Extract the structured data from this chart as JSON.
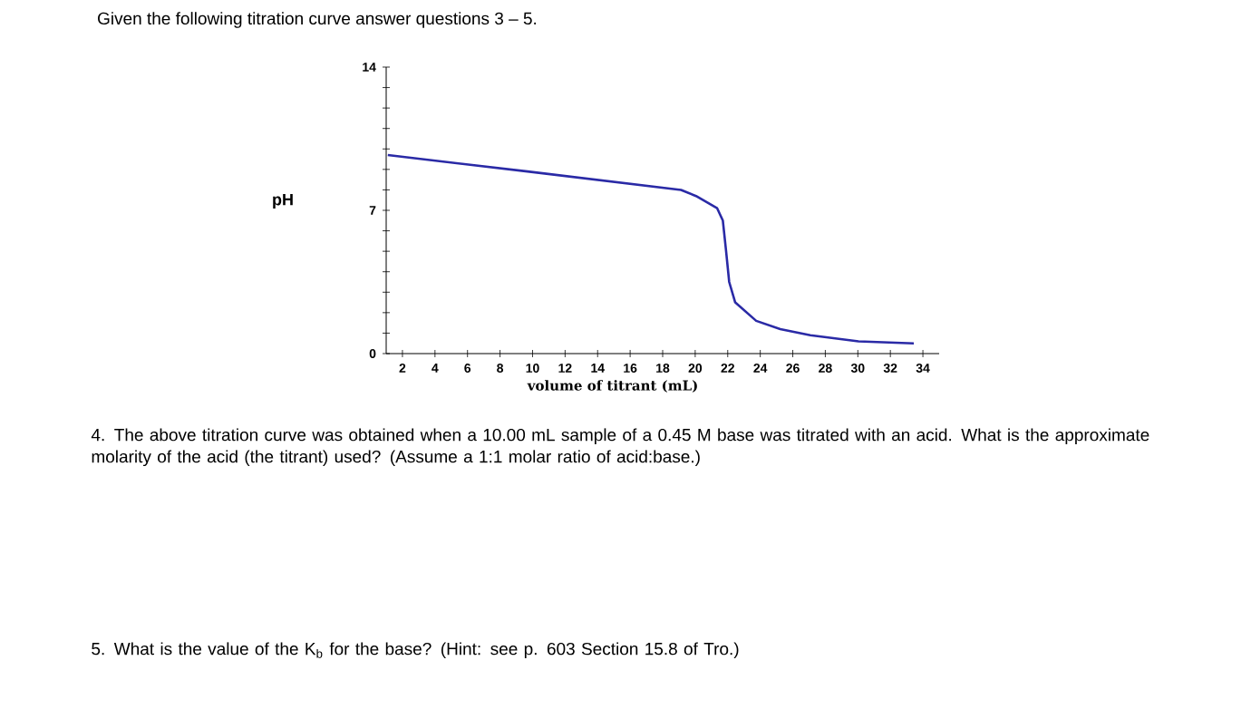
{
  "chart_data": {
    "type": "line",
    "title": "Given the following titration curve answer questions 3 – 5.",
    "xlabel": "volume of titrant (mL)",
    "ylabel": "pH",
    "x": [
      1.1,
      9.69,
      19.13,
      20.05,
      21.35,
      21.7,
      21.9,
      22.09,
      22.46,
      23.75,
      25.23,
      27.08,
      30.04,
      33.44
    ],
    "series": [
      {
        "color": "#2a2aa6",
        "values": [
          9.7,
          8.9,
          8.0,
          7.7,
          7.1,
          6.5,
          5.0,
          3.5,
          2.5,
          1.6,
          1.2,
          0.9,
          0.6,
          0.5
        ]
      }
    ],
    "xlim": [
      1,
      35
    ],
    "ylim": [
      0,
      14
    ],
    "xticks": [
      2,
      4,
      6,
      8,
      10,
      12,
      14,
      16,
      18,
      20,
      22,
      24,
      26,
      28,
      30,
      32,
      34
    ],
    "yticks": [
      0,
      {
        "value": 1,
        "label": null
      },
      {
        "value": 2,
        "label": null
      },
      {
        "value": 3,
        "label": null
      },
      {
        "value": 4,
        "label": null
      },
      {
        "value": 5,
        "label": null
      },
      {
        "value": 6,
        "label": null
      },
      7,
      {
        "value": 8,
        "label": null
      },
      {
        "value": 9,
        "label": null
      },
      {
        "value": 10,
        "label": null
      },
      {
        "value": 11,
        "label": null
      },
      {
        "value": 12,
        "label": null
      },
      {
        "value": 13,
        "label": null
      },
      14
    ],
    "marker": "none",
    "line_style": "solid",
    "annotations": [
      "4.  The above titration curve was obtained when a 10.00 mL sample of a 0.45 M base was titrated with an acid. What is the approximate molarity of the acid (the titrant) used?  (Assume a 1:1 molar ratio of acid:base.)",
      "5.  What is the value of the K$_{b}$ for the base?  (Hint: see p. 603 Section 15.8 of Tro.)"
    ]
  }
}
